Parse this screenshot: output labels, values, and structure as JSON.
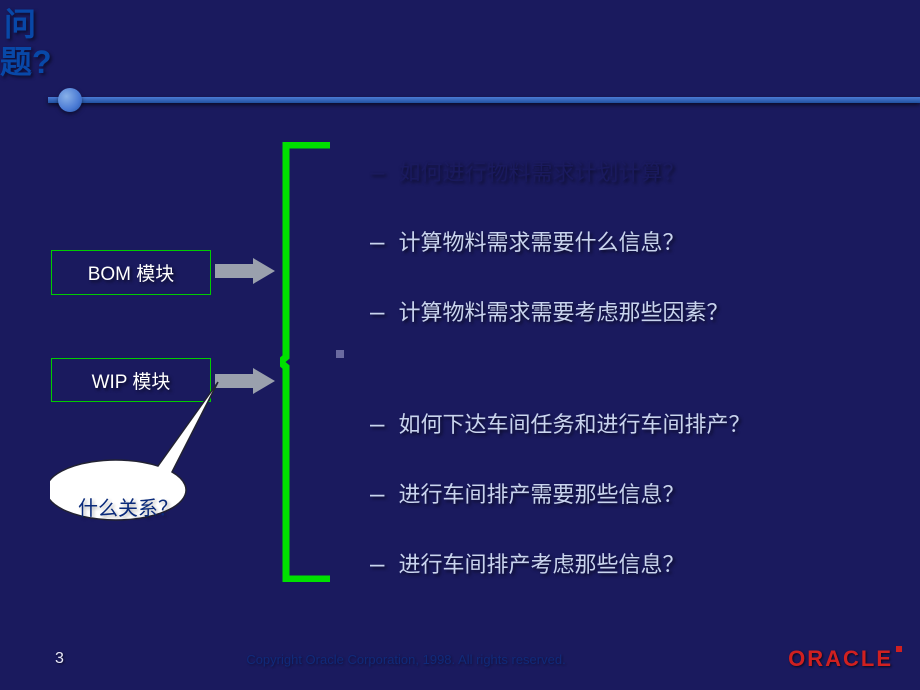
{
  "slide": {
    "title": "问题?",
    "boxes": {
      "bom": "BOM 模块",
      "wip": "WIP 模块"
    },
    "callout": "什么关系？",
    "bullets": [
      {
        "text": "如何进行物料需求计划计算？",
        "highlighted": false,
        "cls": "b1"
      },
      {
        "text": "计算物料需求需要什么信息？",
        "highlighted": true,
        "cls": "b2"
      },
      {
        "text": "计算物料需求需要考虑那些因素？",
        "highlighted": true,
        "cls": "b3"
      },
      {
        "text": "如何下达车间任务和进行车间排产？",
        "highlighted": true,
        "cls": "b4"
      },
      {
        "text": "进行车间排产需要那些信息？",
        "highlighted": true,
        "cls": "b5"
      },
      {
        "text": "进行车间排产考虑那些信息？",
        "highlighted": true,
        "cls": "b6"
      }
    ],
    "colors": {
      "background": "#1a1a5e",
      "box_border": "#00cc00",
      "bracket": "#00e000",
      "arrow_fill": "#9aa0ad",
      "bullet_text": "#c9d4ee",
      "bullet_dim": "#1a1a5e",
      "title_color": "#0848a8",
      "callout_fill": "#ffffff",
      "callout_text": "#0a2a7a",
      "logo_color": "#d02020",
      "copyright_color": "#102a7a"
    }
  },
  "footer": {
    "page": "3",
    "copyright": "Copyright  Oracle Corporation, 1998. All rights reserved.",
    "logo": "ORACLE"
  }
}
